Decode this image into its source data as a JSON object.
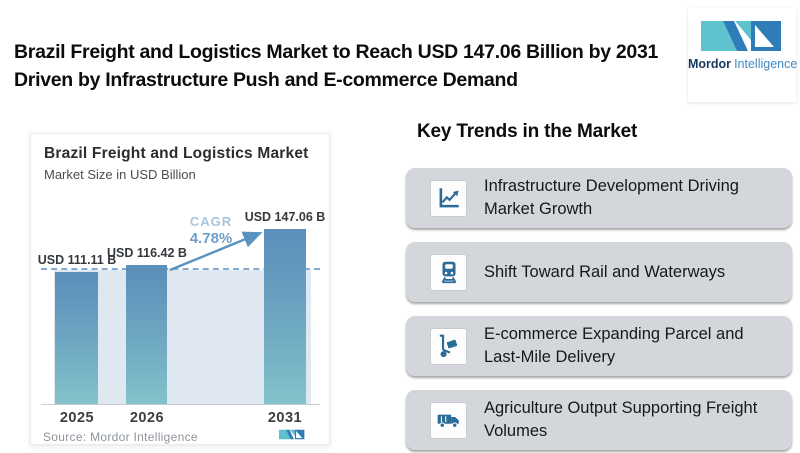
{
  "header": {
    "title": "Brazil Freight and Logistics Market to Reach USD 147.06 Billion by 2031 Driven by Infrastructure Push and E-commerce Demand",
    "logo": {
      "primary": "Mordor",
      "secondary": "Intelligence"
    }
  },
  "chart_card": {
    "title": "Brazil Freight and Logistics Market",
    "subtitle": "Market Size in USD Billion",
    "cagr_label": "CAGR",
    "cagr_value": "4.78%",
    "source": "Source: Mordor Intelligence"
  },
  "chart_data": {
    "type": "bar",
    "title": "Brazil Freight and Logistics Market",
    "subtitle": "Market Size in USD Billion",
    "unit": "USD Billion",
    "categories": [
      "2025",
      "2026",
      "2031"
    ],
    "values": [
      111.11,
      116.42,
      147.06
    ],
    "value_labels": [
      "USD 111.11 B",
      "USD 116.42 B",
      "USD 147.06 B"
    ],
    "cagr_percent": 4.78,
    "dashed_reference_value": 116.42,
    "ylim": [
      0,
      160
    ],
    "grid": false,
    "legend": "none"
  },
  "key_trends": {
    "heading": "Key Trends in the Market",
    "items": [
      {
        "icon": "line-chart-growth-icon",
        "label": "Infrastructure Development Driving Market Growth"
      },
      {
        "icon": "train-icon",
        "label": "Shift Toward Rail and Waterways"
      },
      {
        "icon": "hand-truck-icon",
        "label": "E-commerce Expanding Parcel and Last-Mile Delivery"
      },
      {
        "icon": "delivery-truck-icon",
        "label": "Agriculture Output Supporting Freight Volumes"
      }
    ]
  },
  "colors": {
    "bar_gradient_top": "#5b8eb9",
    "bar_gradient_mid": "#6fa8c2",
    "bar_gradient_bottom": "#83c2ca",
    "plot_panel": "#dfe8f1",
    "dashed_line": "#84abcf",
    "arrow": "#5b93c0",
    "cagr_label_color": "#a9c4dd",
    "cagr_value_color": "#6e9dc9",
    "trend_card_bg": "#d3d6db",
    "icon_blue": "#2a6b98",
    "logo_teal": "#5ec1ce",
    "logo_blue": "#2e7cb8",
    "logo_navy": "#16395e",
    "logo_text_blue": "#4189c2"
  }
}
